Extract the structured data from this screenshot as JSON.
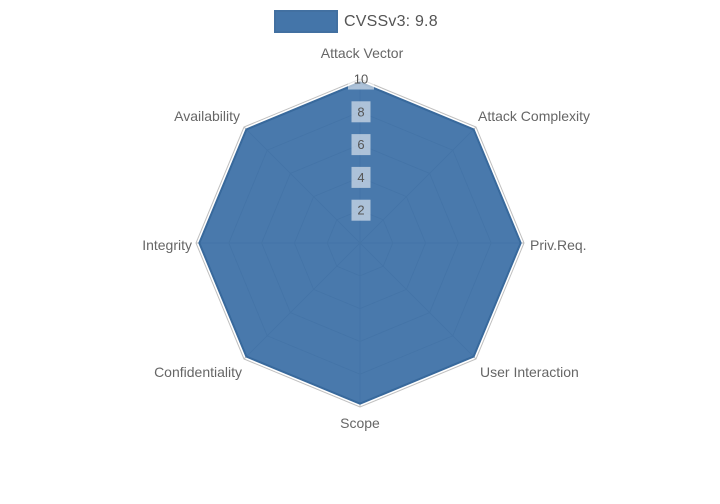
{
  "legend": {
    "label": "CVSSv3: 9.8"
  },
  "chart_data": {
    "type": "radar",
    "categories": [
      "Attack Vector",
      "Attack Complexity",
      "Priv.Req.",
      "User Interaction",
      "Scope",
      "Confidentiality",
      "Integrity",
      "Availability"
    ],
    "series": [
      {
        "name": "CVSSv3: 9.8",
        "values": [
          9.8,
          9.8,
          9.8,
          9.8,
          9.8,
          9.8,
          9.8,
          9.8
        ]
      }
    ],
    "radial_ticks": [
      2,
      4,
      6,
      8,
      10
    ],
    "range": [
      0,
      10
    ],
    "grid": true,
    "grid_shape": "polygon",
    "legend_position": "top-center",
    "title": ""
  },
  "colors": {
    "series_base": "#3a6ea5",
    "series_fill_opacity": 0.92,
    "series_stroke": "#38699c",
    "grid_line": "#8c8c8c",
    "grid_opacity": 0.55,
    "axis_label_text": "#666666",
    "tick_text": "#555555",
    "tick_bg": "rgba(255,255,255,0.55)",
    "legend_text": "#545454",
    "background": "#ffffff"
  }
}
